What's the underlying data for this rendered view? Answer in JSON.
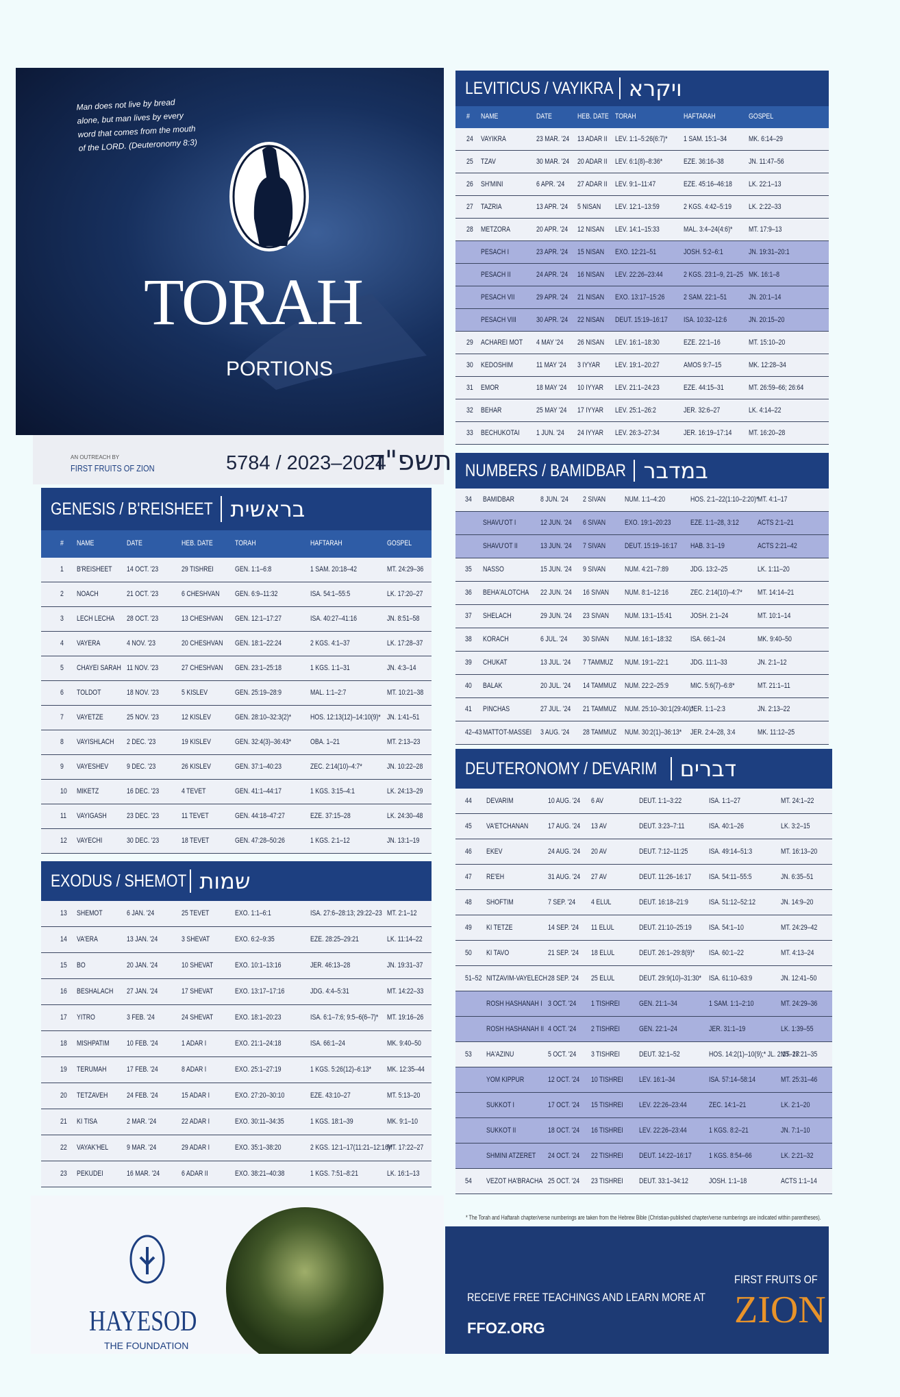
{
  "cover": {
    "quote": "Man does not live by bread alone, but man lives by every word that comes from the mouth of the LORD. (Deuteronomy 8:3)",
    "title": "TORAH",
    "subtitle": "PORTIONS",
    "outreach": "AN OUTREACH BY",
    "publisher": "FIRST FRUITS OF ZION",
    "years": "5784 / 2023–2024",
    "hebrew_year": "תשפ\"ד"
  },
  "sections": [
    {
      "title": "GENESIS / B'REISHEET",
      "hebrew": "בראשית",
      "columns": [
        "#",
        "NAME",
        "DATE",
        "HEB. DATE",
        "TORAH",
        "HAFTARAH",
        "GOSPEL"
      ],
      "rows": [
        [
          "1",
          "B'REISHEET",
          "14 OCT. '23",
          "29 TISHREI",
          "GEN. 1:1–6:8",
          "1 SAM. 20:18–42",
          "MT. 24:29–36"
        ],
        [
          "2",
          "NOACH",
          "21 OCT. '23",
          "6 CHESHVAN",
          "GEN. 6:9–11:32",
          "ISA. 54:1–55:5",
          "LK. 17:20–27"
        ],
        [
          "3",
          "LECH LECHA",
          "28 OCT. '23",
          "13 CHESHVAN",
          "GEN. 12:1–17:27",
          "ISA. 40:27–41:16",
          "JN. 8:51–58"
        ],
        [
          "4",
          "VAYERA",
          "4 NOV. '23",
          "20 CHESHVAN",
          "GEN. 18:1–22:24",
          "2 KGS. 4:1–37",
          "LK. 17:28–37"
        ],
        [
          "5",
          "CHAYEI SARAH",
          "11 NOV. '23",
          "27 CHESHVAN",
          "GEN. 23:1–25:18",
          "1 KGS. 1:1–31",
          "JN. 4:3–14"
        ],
        [
          "6",
          "TOLDOT",
          "18 NOV. '23",
          "5 KISLEV",
          "GEN. 25:19–28:9",
          "MAL. 1:1–2:7",
          "MT. 10:21–38"
        ],
        [
          "7",
          "VAYETZE",
          "25 NOV. '23",
          "12 KISLEV",
          "GEN. 28:10–32:3(2)*",
          "HOS. 12:13(12)–14:10(9)*",
          "JN. 1:41–51"
        ],
        [
          "8",
          "VAYISHLACH",
          "2 DEC. '23",
          "19 KISLEV",
          "GEN. 32:4(3)–36:43*",
          "OBA. 1–21",
          "MT. 2:13–23"
        ],
        [
          "9",
          "VAYESHEV",
          "9 DEC. '23",
          "26 KISLEV",
          "GEN. 37:1–40:23",
          "ZEC. 2:14(10)–4:7*",
          "JN. 10:22–28"
        ],
        [
          "10",
          "MIKETZ",
          "16 DEC. '23",
          "4 TEVET",
          "GEN. 41:1–44:17",
          "1 KGS. 3:15–4:1",
          "LK. 24:13–29"
        ],
        [
          "11",
          "VAYIGASH",
          "23 DEC. '23",
          "11 TEVET",
          "GEN. 44:18–47:27",
          "EZE. 37:15–28",
          "LK. 24:30–48"
        ],
        [
          "12",
          "VAYECHI",
          "30 DEC. '23",
          "18 TEVET",
          "GEN. 47:28–50:26",
          "1 KGS. 2:1–12",
          "JN. 13:1–19"
        ]
      ]
    },
    {
      "title": "EXODUS / SHEMOT",
      "hebrew": "שמות",
      "rows": [
        [
          "13",
          "SHEMOT",
          "6 JAN. '24",
          "25 TEVET",
          "EXO. 1:1–6:1",
          "ISA. 27:6–28:13; 29:22–23",
          "MT. 2:1–12"
        ],
        [
          "14",
          "VA'ERA",
          "13 JAN. '24",
          "3 SHEVAT",
          "EXO. 6:2–9:35",
          "EZE. 28:25–29:21",
          "LK. 11:14–22"
        ],
        [
          "15",
          "BO",
          "20 JAN. '24",
          "10 SHEVAT",
          "EXO. 10:1–13:16",
          "JER. 46:13–28",
          "JN. 19:31–37"
        ],
        [
          "16",
          "BESHALACH",
          "27 JAN. '24",
          "17 SHEVAT",
          "EXO. 13:17–17:16",
          "JDG. 4:4–5:31",
          "MT. 14:22–33"
        ],
        [
          "17",
          "YITRO",
          "3 FEB. '24",
          "24 SHEVAT",
          "EXO. 18:1–20:23",
          "ISA. 6:1–7:6; 9:5–6(6–7)*",
          "MT. 19:16–26"
        ],
        [
          "18",
          "MISHPATIM",
          "10 FEB. '24",
          "1 ADAR I",
          "EXO. 21:1–24:18",
          "ISA. 66:1–24",
          "MK. 9:40–50"
        ],
        [
          "19",
          "TERUMAH",
          "17 FEB. '24",
          "8 ADAR I",
          "EXO. 25:1–27:19",
          "1 KGS. 5:26(12)–6:13*",
          "MK. 12:35–44"
        ],
        [
          "20",
          "TETZAVEH",
          "24 FEB. '24",
          "15 ADAR I",
          "EXO. 27:20–30:10",
          "EZE. 43:10–27",
          "MT. 5:13–20"
        ],
        [
          "21",
          "KI TISA",
          "2 MAR. '24",
          "22 ADAR I",
          "EXO. 30:11–34:35",
          "1 KGS. 18:1–39",
          "MK. 9:1–10"
        ],
        [
          "22",
          "VAYAK'HEL",
          "9 MAR. '24",
          "29 ADAR I",
          "EXO. 35:1–38:20",
          "2 KGS. 12:1–17(11:21–12:16)*",
          "MT. 17:22–27"
        ],
        [
          "23",
          "PEKUDEI",
          "16 MAR. '24",
          "6 ADAR II",
          "EXO. 38:21–40:38",
          "1 KGS. 7:51–8:21",
          "LK. 16:1–13"
        ]
      ]
    },
    {
      "title": "LEVITICUS / VAYIKRA",
      "hebrew": "ויקרא",
      "columns": [
        "#",
        "NAME",
        "DATE",
        "HEB. DATE",
        "TORAH",
        "HAFTARAH",
        "GOSPEL"
      ],
      "rows": [
        [
          "24",
          "VAYIKRA",
          "23 MAR. '24",
          "13 ADAR II",
          "LEV. 1:1–5:26(6:7)*",
          "1 SAM. 15:1–34",
          "MK. 6:14–29"
        ],
        [
          "25",
          "TZAV",
          "30 MAR. '24",
          "20 ADAR II",
          "LEV. 6:1(8)–8:36*",
          "EZE. 36:16–38",
          "JN. 11:47–56"
        ],
        [
          "26",
          "SH'MINI",
          "6 APR. '24",
          "27 ADAR II",
          "LEV. 9:1–11:47",
          "EZE. 45:16–46:18",
          "LK. 22:1–13"
        ],
        [
          "27",
          "TAZRIA",
          "13 APR. '24",
          "5 NISAN",
          "LEV. 12:1–13:59",
          "2 KGS. 4:42–5:19",
          "LK. 2:22–33"
        ],
        [
          "28",
          "METZORA",
          "20 APR. '24",
          "12 NISAN",
          "LEV. 14:1–15:33",
          "MAL. 3:4–24(4:6)*",
          "MT. 17:9–13"
        ],
        [
          null,
          "PESACH I",
          "23 APR. '24",
          "15 NISAN",
          "EXO. 12:21–51",
          "JOSH. 5:2–6:1",
          "JN. 19:31–20:1"
        ],
        [
          null,
          "PESACH II",
          "24 APR. '24",
          "16 NISAN",
          "LEV. 22:26–23:44",
          "2 KGS. 23:1–9, 21–25",
          "MK. 16:1–8"
        ],
        [
          null,
          "PESACH VII",
          "29 APR. '24",
          "21 NISAN",
          "EXO. 13:17–15:26",
          "2 SAM. 22:1–51",
          "JN. 20:1–14"
        ],
        [
          null,
          "PESACH VIII",
          "30 APR. '24",
          "22 NISAN",
          "DEUT. 15:19–16:17",
          "ISA. 10:32–12:6",
          "JN. 20:15–20"
        ],
        [
          "29",
          "ACHAREI MOT",
          "4 MAY '24",
          "26 NISAN",
          "LEV. 16:1–18:30",
          "EZE. 22:1–16",
          "MT. 15:10–20"
        ],
        [
          "30",
          "KEDOSHIM",
          "11 MAY '24",
          "3 IYYAR",
          "LEV. 19:1–20:27",
          "AMOS 9:7–15",
          "MK. 12:28–34"
        ],
        [
          "31",
          "EMOR",
          "18 MAY '24",
          "10 IYYAR",
          "LEV. 21:1–24:23",
          "EZE. 44:15–31",
          "MT. 26:59–66; 26:64"
        ],
        [
          "32",
          "BEHAR",
          "25 MAY '24",
          "17 IYYAR",
          "LEV. 25:1–26:2",
          "JER. 32:6–27",
          "LK. 4:14–22"
        ],
        [
          "33",
          "BECHUKOTAI",
          "1 JUN. '24",
          "24 IYYAR",
          "LEV. 26:3–27:34",
          "JER. 16:19–17:14",
          "MT. 16:20–28"
        ]
      ]
    },
    {
      "title": "NUMBERS / BAMIDBAR",
      "hebrew": "במדבר",
      "rows": [
        [
          "34",
          "BAMIDBAR",
          "8 JUN. '24",
          "2 SIVAN",
          "NUM. 1:1–4:20",
          "HOS. 2:1–22(1:10–2:20)*",
          "MT. 4:1–17"
        ],
        [
          null,
          "SHAVU'OT I",
          "12 JUN. '24",
          "6 SIVAN",
          "EXO. 19:1–20:23",
          "EZE. 1:1–28, 3:12",
          "ACTS 2:1–21"
        ],
        [
          null,
          "SHAVU'OT II",
          "13 JUN. '24",
          "7 SIVAN",
          "DEUT. 15:19–16:17",
          "HAB. 3:1–19",
          "ACTS 2:21–42"
        ],
        [
          "35",
          "NASSO",
          "15 JUN. '24",
          "9 SIVAN",
          "NUM. 4:21–7:89",
          "JDG. 13:2–25",
          "LK. 1:11–20"
        ],
        [
          "36",
          "BEHA'ALOTCHA",
          "22 JUN. '24",
          "16 SIVAN",
          "NUM. 8:1–12:16",
          "ZEC. 2:14(10)–4:7*",
          "MT. 14:14–21"
        ],
        [
          "37",
          "SHELACH",
          "29 JUN. '24",
          "23 SIVAN",
          "NUM. 13:1–15:41",
          "JOSH. 2:1–24",
          "MT. 10:1–14"
        ],
        [
          "38",
          "KORACH",
          "6 JUL. '24",
          "30 SIVAN",
          "NUM. 16:1–18:32",
          "ISA. 66:1–24",
          "MK. 9:40–50"
        ],
        [
          "39",
          "CHUKAT",
          "13 JUL. '24",
          "7 TAMMUZ",
          "NUM. 19:1–22:1",
          "JDG. 11:1–33",
          "JN. 2:1–12"
        ],
        [
          "40",
          "BALAK",
          "20 JUL. '24",
          "14 TAMMUZ",
          "NUM. 22:2–25:9",
          "MIC. 5:6(7)–6:8*",
          "MT. 21:1–11"
        ],
        [
          "41",
          "PINCHAS",
          "27 JUL. '24",
          "21 TAMMUZ",
          "NUM. 25:10–30:1(29:40)*",
          "JER. 1:1–2:3",
          "JN. 2:13–22"
        ],
        [
          "42–43",
          "MATTOT-MASSEI",
          "3 AUG. '24",
          "28 TAMMUZ",
          "NUM. 30:2(1)–36:13*",
          "JER. 2:4–28, 3:4",
          "MK. 11:12–25"
        ]
      ]
    },
    {
      "title": "DEUTERONOMY / DEVARIM",
      "hebrew": "דברים",
      "rows": [
        [
          "44",
          "DEVARIM",
          "10 AUG. '24",
          "6 AV",
          "DEUT. 1:1–3:22",
          "ISA. 1:1–27",
          "MT. 24:1–22"
        ],
        [
          "45",
          "VA'ETCHANAN",
          "17 AUG. '24",
          "13 AV",
          "DEUT. 3:23–7:11",
          "ISA. 40:1–26",
          "LK. 3:2–15"
        ],
        [
          "46",
          "EKEV",
          "24 AUG. '24",
          "20 AV",
          "DEUT. 7:12–11:25",
          "ISA. 49:14–51:3",
          "MT. 16:13–20"
        ],
        [
          "47",
          "RE'EH",
          "31 AUG. '24",
          "27 AV",
          "DEUT. 11:26–16:17",
          "ISA. 54:11–55:5",
          "JN. 6:35–51"
        ],
        [
          "48",
          "SHOFTIM",
          "7 SEP. '24",
          "4 ELUL",
          "DEUT. 16:18–21:9",
          "ISA. 51:12–52:12",
          "JN. 14:9–20"
        ],
        [
          "49",
          "KI TETZE",
          "14 SEP. '24",
          "11 ELUL",
          "DEUT. 21:10–25:19",
          "ISA. 54:1–10",
          "MT. 24:29–42"
        ],
        [
          "50",
          "KI TAVO",
          "21 SEP. '24",
          "18 ELUL",
          "DEUT. 26:1–29:8(9)*",
          "ISA. 60:1–22",
          "MT. 4:13–24"
        ],
        [
          "51–52",
          "NITZAVIM-VAYELECH",
          "28 SEP. '24",
          "25 ELUL",
          "DEUT. 29:9(10)–31:30*",
          "ISA. 61:10–63:9",
          "JN. 12:41–50"
        ],
        [
          null,
          "ROSH HASHANAH I",
          "3 OCT. '24",
          "1 TISHREI",
          "GEN. 21:1–34",
          "1 SAM. 1:1–2:10",
          "MT. 24:29–36"
        ],
        [
          null,
          "ROSH HASHANAH II",
          "4 OCT. '24",
          "2 TISHREI",
          "GEN. 22:1–24",
          "JER. 31:1–19",
          "LK. 1:39–55"
        ],
        [
          "53",
          "HA'AZINU",
          "5 OCT. '24",
          "3 TISHREI",
          "DEUT. 32:1–52",
          "HOS. 14:2(1)–10(9);* JL. 2:15–27",
          "MT. 18:21–35"
        ],
        [
          null,
          "YOM KIPPUR",
          "12 OCT. '24",
          "10 TISHREI",
          "LEV. 16:1–34",
          "ISA. 57:14–58:14",
          "MT. 25:31–46"
        ],
        [
          null,
          "SUKKOT I",
          "17 OCT. '24",
          "15 TISHREI",
          "LEV. 22:26–23:44",
          "ZEC. 14:1–21",
          "LK. 2:1–20"
        ],
        [
          null,
          "SUKKOT II",
          "18 OCT. '24",
          "16 TISHREI",
          "LEV. 22:26–23:44",
          "1 KGS. 8:2–21",
          "JN. 7:1–10"
        ],
        [
          null,
          "SHMINI ATZERET",
          "24 OCT. '24",
          "22 TISHREI",
          "DEUT. 14:22–16:17",
          "1 KGS. 8:54–66",
          "LK. 2:21–32"
        ],
        [
          "54",
          "VEZOT HA'BRACHA",
          "25 OCT. '24",
          "23 TISHREI",
          "DEUT. 33:1–34:12",
          "JOSH. 1:1–18",
          "ACTS 1:1–14"
        ]
      ]
    }
  ],
  "footnote": "* The Torah and Haftarah chapter/verse numberings are taken from the Hebrew Bible (Christian-published chapter/verse numberings are indicated within parentheses).",
  "hayesod": {
    "name": "HAYESOD",
    "tagline": "THE FOUNDATION"
  },
  "footer": {
    "cta": "RECEIVE FREE TEACHINGS AND LEARN MORE AT",
    "url": "FFOZ.ORG",
    "brand_top": "FIRST FRUITS OF",
    "brand": "ZION"
  }
}
